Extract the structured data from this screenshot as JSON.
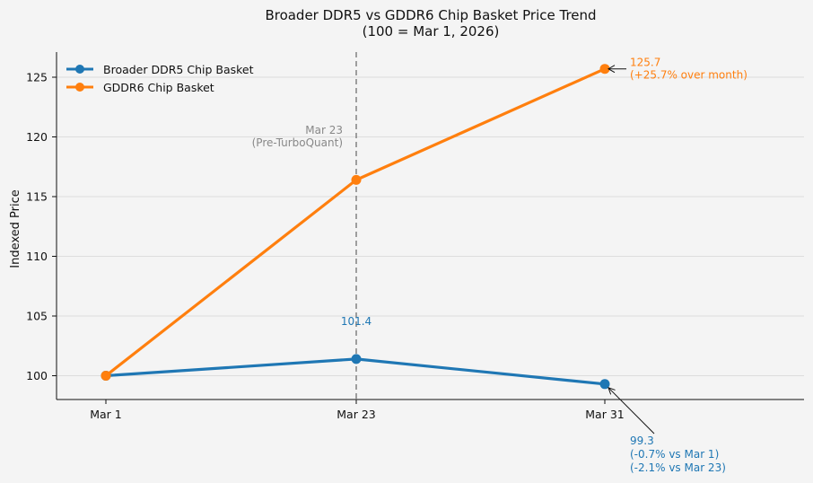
{
  "chart_data": {
    "type": "line",
    "title": "Broader DDR5 vs GDDR6 Chip Basket Price Trend",
    "subtitle": "(100 = Mar 1, 2026)",
    "xlabel": "",
    "ylabel": "Indexed Price",
    "categories": [
      "Mar 1",
      "Mar 23",
      "Mar 31"
    ],
    "ylim": [
      98,
      127
    ],
    "yticks": [
      100,
      105,
      110,
      115,
      120,
      125
    ],
    "grid": "horizontal",
    "legend_position": "top-left",
    "series": [
      {
        "name": "Broader DDR5 Chip Basket",
        "values": [
          100,
          101.4,
          99.3
        ],
        "color": "#1f77b4"
      },
      {
        "name": "GDDR6 Chip Basket",
        "values": [
          100,
          116.4,
          125.7
        ],
        "color": "#ff7f0e"
      }
    ],
    "vline": {
      "category": "Mar 23",
      "label_line1": "Mar 23",
      "label_line2": "(Pre-TurboQuant)",
      "color": "#888888"
    },
    "annotations": {
      "ddr5_mid": "101.4",
      "gddr6_end_line1": "125.7",
      "gddr6_end_line2": "(+25.7% over month)",
      "ddr5_end_line1": "99.3",
      "ddr5_end_line2": "(-0.7% vs Mar 1)",
      "ddr5_end_line3": "(-2.1% vs Mar 23)"
    }
  }
}
